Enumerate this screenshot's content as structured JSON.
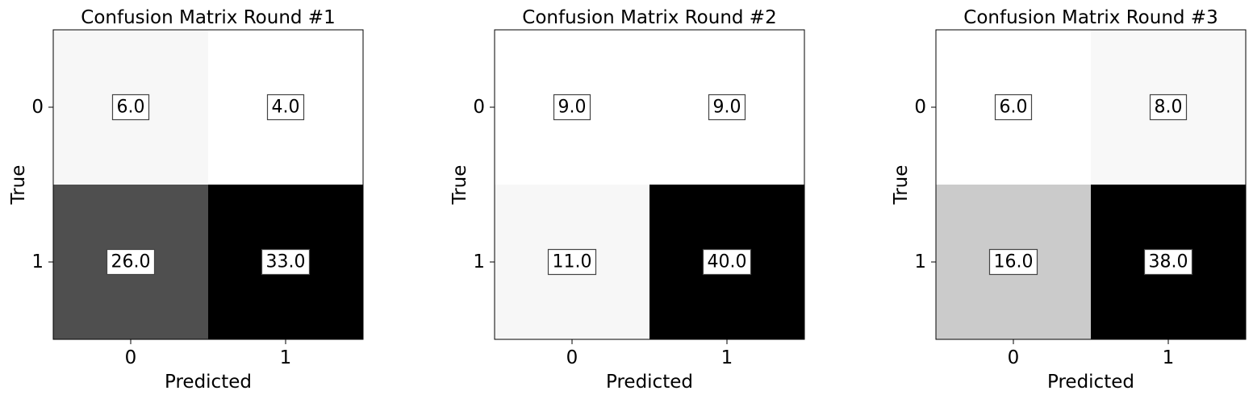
{
  "chart_data": [
    {
      "type": "heatmap",
      "title": "Confusion Matrix Round #1",
      "xlabel": "Predicted",
      "ylabel": "True",
      "x_categories": [
        "0",
        "1"
      ],
      "y_categories": [
        "0",
        "1"
      ],
      "values": [
        [
          6.0,
          4.0
        ],
        [
          26.0,
          33.0
        ]
      ],
      "value_labels": [
        [
          "6.0",
          "4.0"
        ],
        [
          "26.0",
          "33.0"
        ]
      ],
      "colormap": "Greys"
    },
    {
      "type": "heatmap",
      "title": "Confusion Matrix Round #2",
      "xlabel": "Predicted",
      "ylabel": "True",
      "x_categories": [
        "0",
        "1"
      ],
      "y_categories": [
        "0",
        "1"
      ],
      "values": [
        [
          9.0,
          9.0
        ],
        [
          11.0,
          40.0
        ]
      ],
      "value_labels": [
        [
          "9.0",
          "9.0"
        ],
        [
          "11.0",
          "40.0"
        ]
      ],
      "colormap": "Greys"
    },
    {
      "type": "heatmap",
      "title": "Confusion Matrix Round #3",
      "xlabel": "Predicted",
      "ylabel": "True",
      "x_categories": [
        "0",
        "1"
      ],
      "y_categories": [
        "0",
        "1"
      ],
      "values": [
        [
          6.0,
          8.0
        ],
        [
          16.0,
          38.0
        ]
      ],
      "value_labels": [
        [
          "6.0",
          "8.0"
        ],
        [
          "16.0",
          "38.0"
        ]
      ],
      "colormap": "Greys"
    }
  ]
}
